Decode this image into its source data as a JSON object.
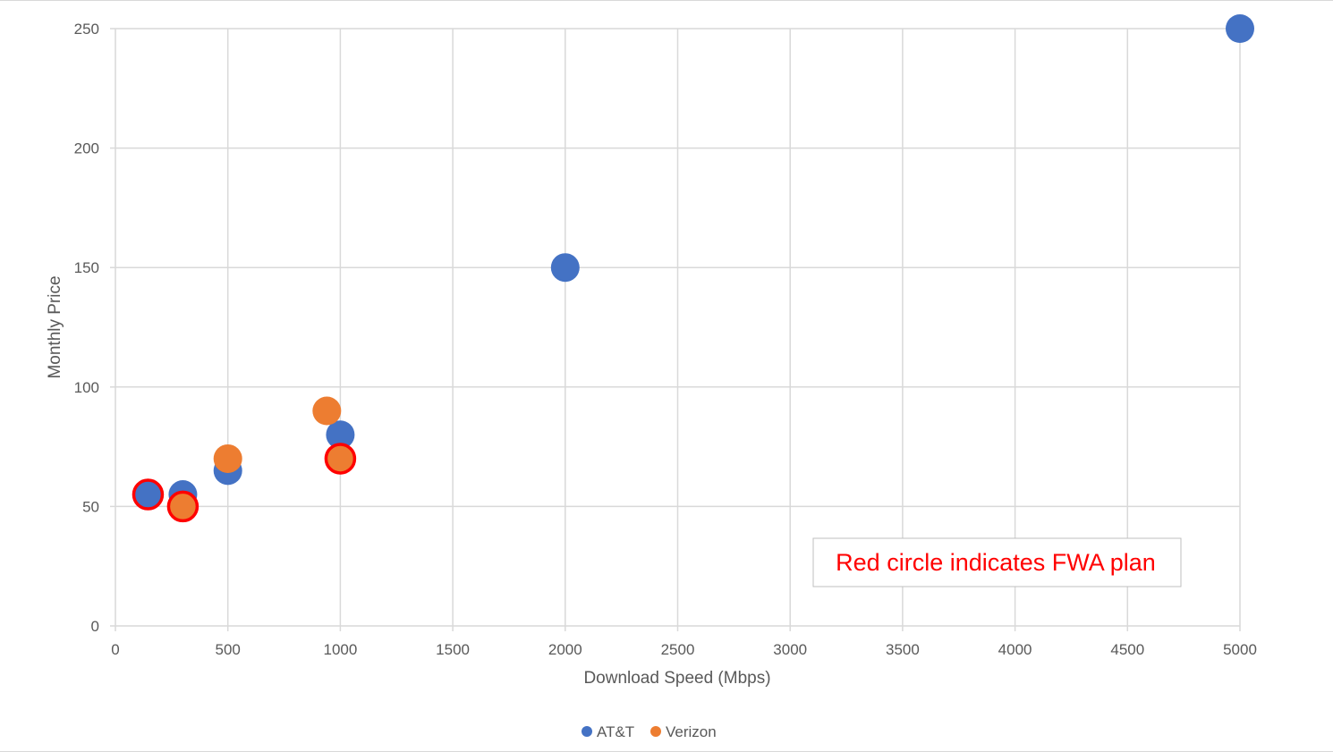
{
  "chart_data": {
    "type": "scatter",
    "title": "",
    "xlabel": "Download Speed (Mbps)",
    "ylabel": "Monthly Price",
    "xlim": [
      0,
      5000
    ],
    "ylim": [
      0,
      250
    ],
    "x_ticks": [
      0,
      500,
      1000,
      1500,
      2000,
      2500,
      3000,
      3500,
      4000,
      4500,
      5000
    ],
    "y_ticks": [
      0,
      50,
      100,
      150,
      200,
      250
    ],
    "grid": true,
    "legend_position": "bottom",
    "series": [
      {
        "name": "AT&T",
        "color": "#4472c4",
        "points": [
          {
            "x": 145,
            "y": 55,
            "fwa": true
          },
          {
            "x": 300,
            "y": 55,
            "fwa": false
          },
          {
            "x": 500,
            "y": 65,
            "fwa": false
          },
          {
            "x": 1000,
            "y": 80,
            "fwa": false
          },
          {
            "x": 2000,
            "y": 150,
            "fwa": false
          },
          {
            "x": 5000,
            "y": 250,
            "fwa": false
          }
        ]
      },
      {
        "name": "Verizon",
        "color": "#ed7d31",
        "points": [
          {
            "x": 300,
            "y": 50,
            "fwa": true
          },
          {
            "x": 500,
            "y": 70,
            "fwa": false
          },
          {
            "x": 940,
            "y": 90,
            "fwa": false
          },
          {
            "x": 1000,
            "y": 70,
            "fwa": true
          }
        ]
      }
    ],
    "annotation": {
      "text": "Red circle indicates FWA plan",
      "color": "#ff0000"
    },
    "fwa_outline_color": "#ff0000",
    "grid_color": "#d9d9d9"
  }
}
